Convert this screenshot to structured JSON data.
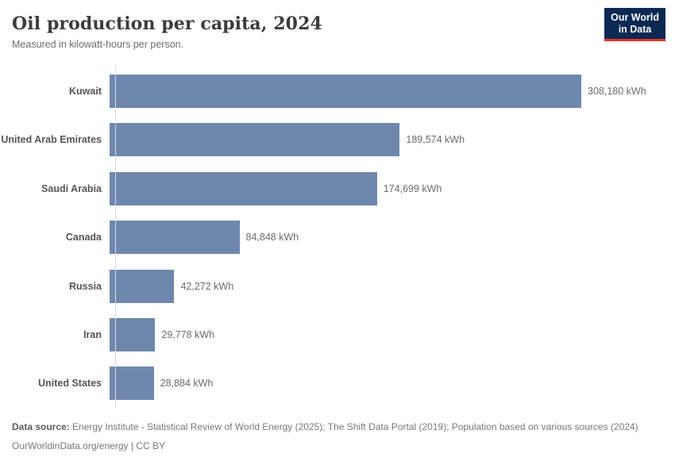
{
  "header": {
    "title": "Oil production per capita, 2024",
    "subtitle": "Measured in kilowatt-hours per person.",
    "logo": {
      "line1": "Our World",
      "line2": "in Data"
    }
  },
  "chart_data": {
    "type": "bar",
    "orientation": "horizontal",
    "title": "Oil production per capita, 2024",
    "subtitle": "Measured in kilowatt-hours per person.",
    "unit": "kWh",
    "categories": [
      "Kuwait",
      "United Arab Emirates",
      "Saudi Arabia",
      "Canada",
      "Russia",
      "Iran",
      "United States"
    ],
    "values": [
      308180,
      189574,
      174699,
      84848,
      42272,
      29778,
      28884
    ],
    "value_labels": [
      "308,180 kWh",
      "189,574 kWh",
      "174,699 kWh",
      "84,848 kWh",
      "42,272 kWh",
      "29,778 kWh",
      "28,884 kWh"
    ],
    "xlim": [
      0,
      308180
    ],
    "grid": false,
    "legend": "none",
    "bar_color": "#6e87ad",
    "axis_line_color": "#dadada"
  },
  "colors": {
    "bar": "#6e87ad",
    "logo_background": "#0a2953",
    "logo_underline": "#dc352a",
    "title_text": "#3b3b3b",
    "body_text": "#6b6b6b"
  },
  "footer": {
    "source_label": "Data source:",
    "source_text": " Energy Institute - Statistical Review of World Energy (2025); The Shift Data Portal (2019); Population based on various sources (2024)",
    "note": "OurWorldinData.org/energy | CC BY"
  }
}
